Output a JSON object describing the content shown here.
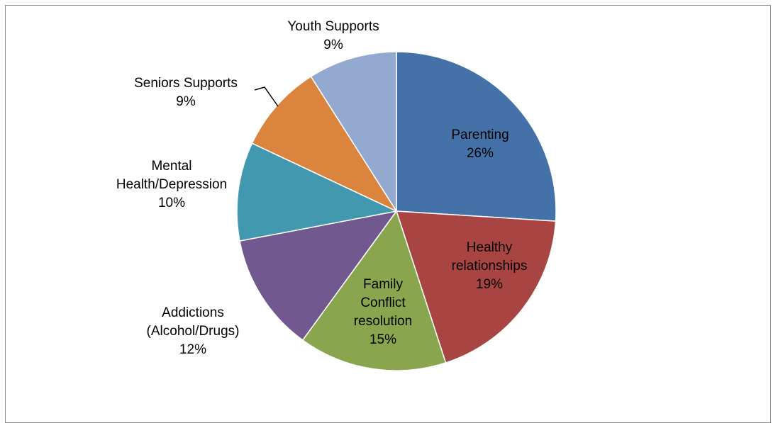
{
  "chart_data": {
    "type": "pie",
    "title": "",
    "legend": "none",
    "start_angle_deg": 0,
    "direction": "clockwise",
    "slices": [
      {
        "label": "Parenting",
        "value": 26,
        "value_label": "26%",
        "color": "#4472A8"
      },
      {
        "label": "Healthy relationships",
        "value": 19,
        "value_label": "19%",
        "color": "#A84543"
      },
      {
        "label": "Family Conflict resolution",
        "value": 15,
        "value_label": "15%",
        "color": "#89A54E"
      },
      {
        "label": "Addictions (Alcohol/Drugs)",
        "value": 12,
        "value_label": "12%",
        "color": "#71588F"
      },
      {
        "label": "Mental Health/Depression",
        "value": 10,
        "value_label": "10%",
        "color": "#4198AF"
      },
      {
        "label": "Seniors Supports",
        "value": 9,
        "value_label": "9%",
        "color": "#DB843D"
      },
      {
        "label": "Youth Supports",
        "value": 9,
        "value_label": "9%",
        "color": "#93A9CF"
      }
    ]
  }
}
